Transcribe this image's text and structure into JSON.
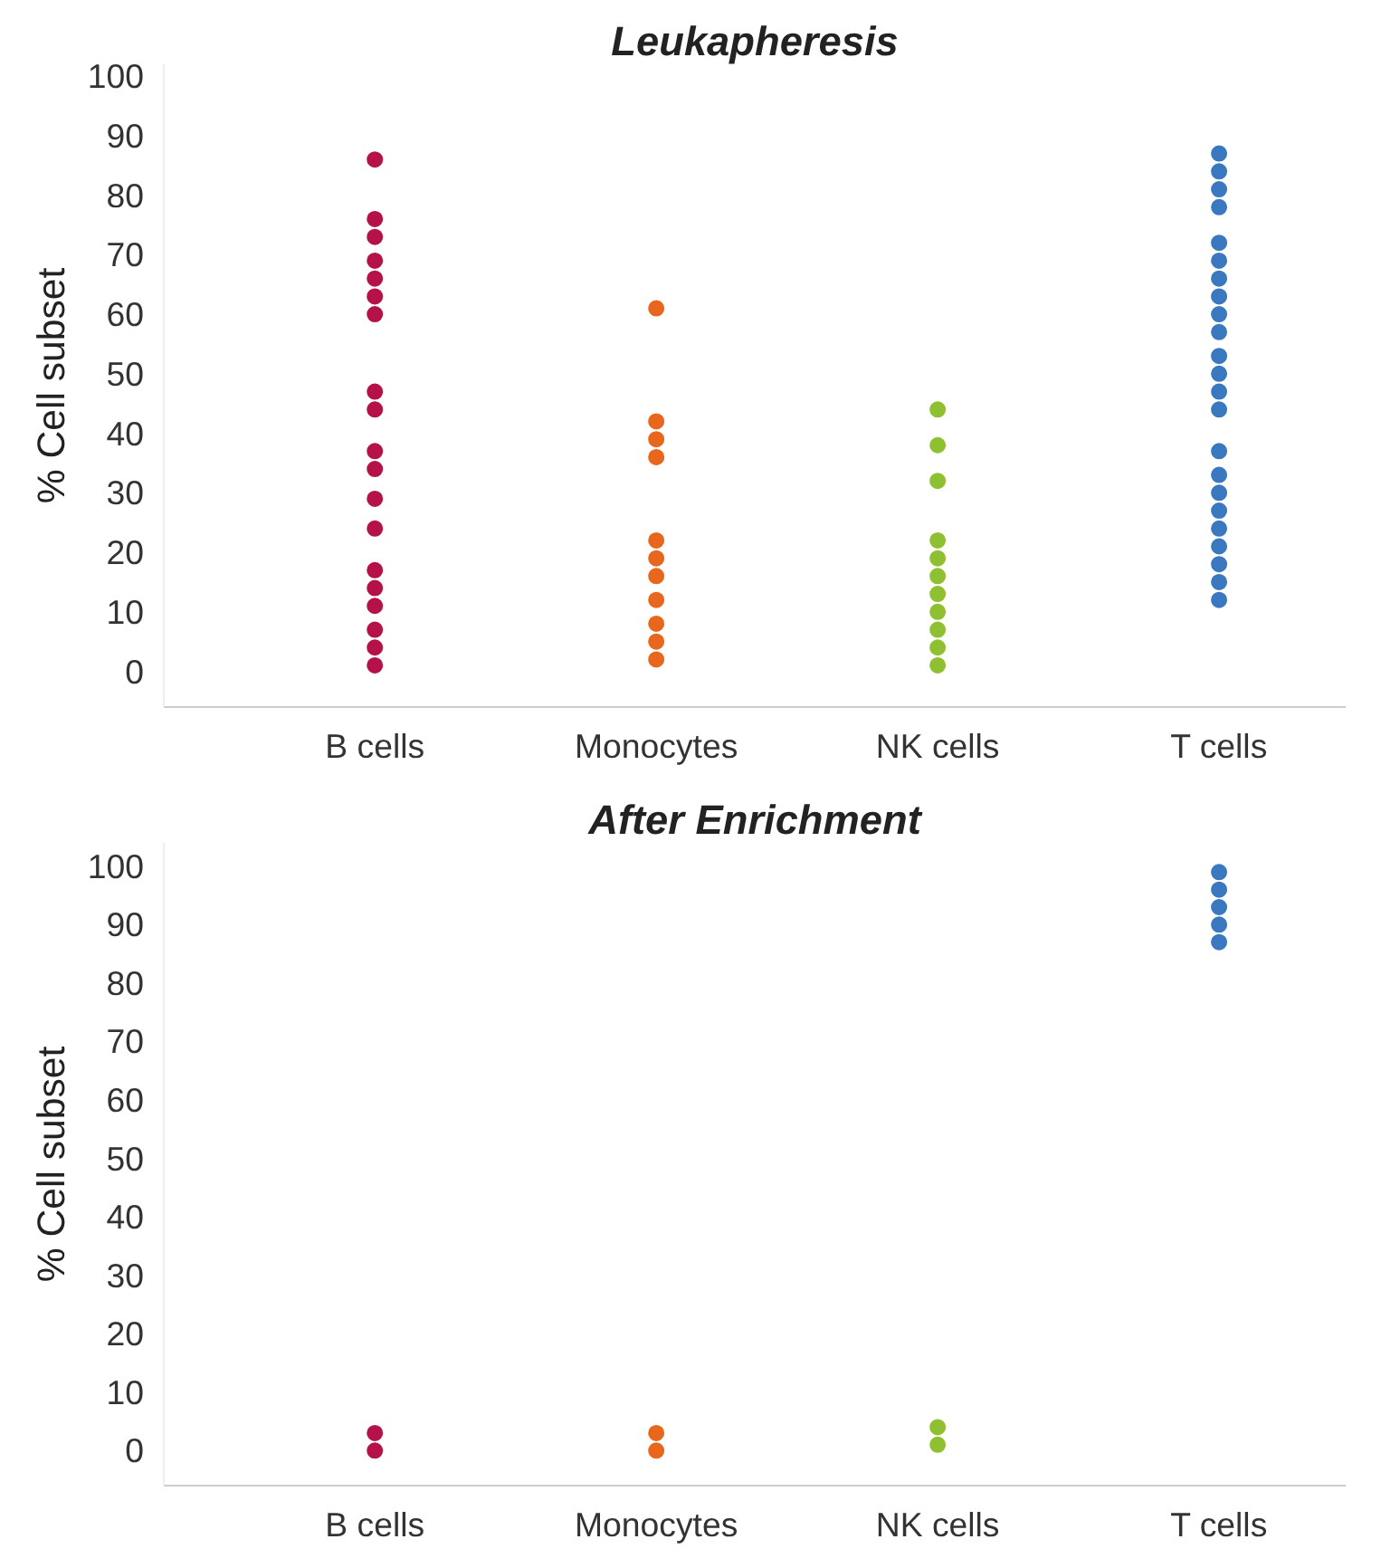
{
  "chart_data": [
    {
      "type": "scatter",
      "title": "Leukapheresis",
      "ylabel": "% Cell subset",
      "categories": [
        "B cells",
        "Monocytes",
        "NK cells",
        "T cells"
      ],
      "ylim": [
        -6,
        102
      ],
      "yticks": [
        0,
        10,
        20,
        30,
        40,
        50,
        60,
        70,
        80,
        90,
        100
      ],
      "grid": false,
      "marker": "circle",
      "series": [
        {
          "color": "#b5124a",
          "x": [
            "B cells",
            "B cells",
            "B cells",
            "B cells",
            "B cells",
            "B cells",
            "B cells",
            "B cells",
            "B cells",
            "B cells",
            "B cells",
            "B cells",
            "B cells",
            "B cells",
            "B cells",
            "B cells",
            "B cells",
            "B cells",
            "B cells"
          ],
          "values": [
            86,
            76,
            73,
            69,
            66,
            63,
            60,
            47,
            44,
            37,
            34,
            29,
            24,
            17,
            14,
            11,
            7,
            4,
            1
          ]
        },
        {
          "color": "#e8671c",
          "x": [
            "Monocytes",
            "Monocytes",
            "Monocytes",
            "Monocytes",
            "Monocytes",
            "Monocytes",
            "Monocytes",
            "Monocytes",
            "Monocytes",
            "Monocytes",
            "Monocytes"
          ],
          "values": [
            61,
            42,
            39,
            36,
            22,
            19,
            16,
            12,
            8,
            5,
            2
          ]
        },
        {
          "color": "#8fc031",
          "x": [
            "NK cells",
            "NK cells",
            "NK cells",
            "NK cells",
            "NK cells",
            "NK cells",
            "NK cells",
            "NK cells",
            "NK cells",
            "NK cells",
            "NK cells"
          ],
          "values": [
            44,
            38,
            32,
            22,
            19,
            16,
            13,
            10,
            7,
            4,
            1
          ]
        },
        {
          "color": "#3a78c0",
          "x": [
            "T cells",
            "T cells",
            "T cells",
            "T cells",
            "T cells",
            "T cells",
            "T cells",
            "T cells",
            "T cells",
            "T cells",
            "T cells",
            "T cells",
            "T cells",
            "T cells",
            "T cells",
            "T cells",
            "T cells",
            "T cells",
            "T cells",
            "T cells",
            "T cells",
            "T cells",
            "T cells"
          ],
          "values": [
            87,
            84,
            81,
            78,
            72,
            69,
            66,
            63,
            60,
            57,
            53,
            50,
            47,
            44,
            37,
            33,
            30,
            27,
            24,
            21,
            18,
            15,
            12
          ]
        }
      ]
    },
    {
      "type": "scatter",
      "title": "After Enrichment",
      "ylabel": "% Cell subset",
      "categories": [
        "B cells",
        "Monocytes",
        "NK cells",
        "T cells"
      ],
      "ylim": [
        -6,
        104
      ],
      "yticks": [
        0,
        10,
        20,
        30,
        40,
        50,
        60,
        70,
        80,
        90,
        100
      ],
      "grid": false,
      "marker": "circle",
      "series": [
        {
          "color": "#b5124a",
          "x": [
            "B cells",
            "B cells"
          ],
          "values": [
            0,
            3
          ]
        },
        {
          "color": "#e8671c",
          "x": [
            "Monocytes",
            "Monocytes"
          ],
          "values": [
            0,
            3
          ]
        },
        {
          "color": "#8fc031",
          "x": [
            "NK cells",
            "NK cells"
          ],
          "values": [
            1,
            4
          ]
        },
        {
          "color": "#3a78c0",
          "x": [
            "T cells",
            "T cells",
            "T cells",
            "T cells",
            "T cells"
          ],
          "values": [
            99,
            96,
            93,
            90,
            87
          ]
        }
      ]
    }
  ]
}
